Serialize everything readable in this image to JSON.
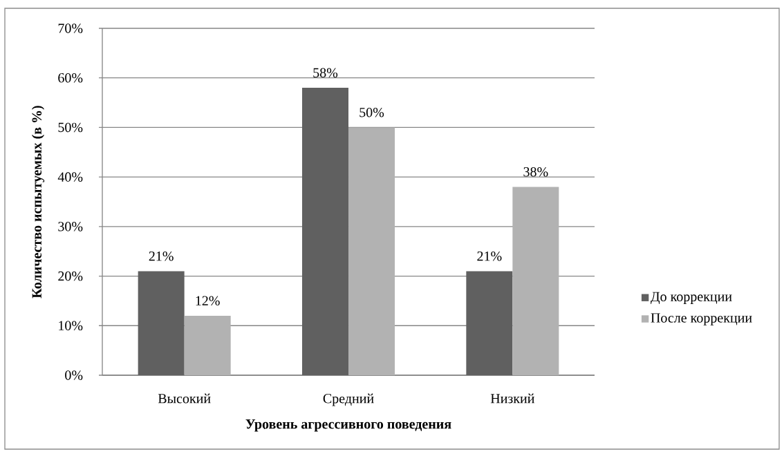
{
  "chart_data": {
    "type": "bar",
    "xlabel": "Уровень агрессивного поведения",
    "ylabel": "Количество испытуемых (в %)",
    "categories": [
      "Высокий",
      "Средний",
      "Низкий"
    ],
    "series": [
      {
        "name": "До коррекции",
        "color": "#606060",
        "values": [
          21,
          58,
          21
        ],
        "value_labels": [
          "21%",
          "58%",
          "21%"
        ]
      },
      {
        "name": "После коррекции",
        "color": "#b2b2b2",
        "values": [
          12,
          50,
          38
        ],
        "value_labels": [
          "12%",
          "50%",
          "38%"
        ]
      }
    ],
    "ylim": [
      0,
      70
    ],
    "yticks": [
      {
        "value": 0,
        "label": "0%"
      },
      {
        "value": 10,
        "label": "10%"
      },
      {
        "value": 20,
        "label": "20%"
      },
      {
        "value": 30,
        "label": "30%"
      },
      {
        "value": 40,
        "label": "40%"
      },
      {
        "value": 50,
        "label": "50%"
      },
      {
        "value": 60,
        "label": "60%"
      },
      {
        "value": 70,
        "label": "70%"
      }
    ],
    "grid": "y",
    "legend": "right"
  }
}
